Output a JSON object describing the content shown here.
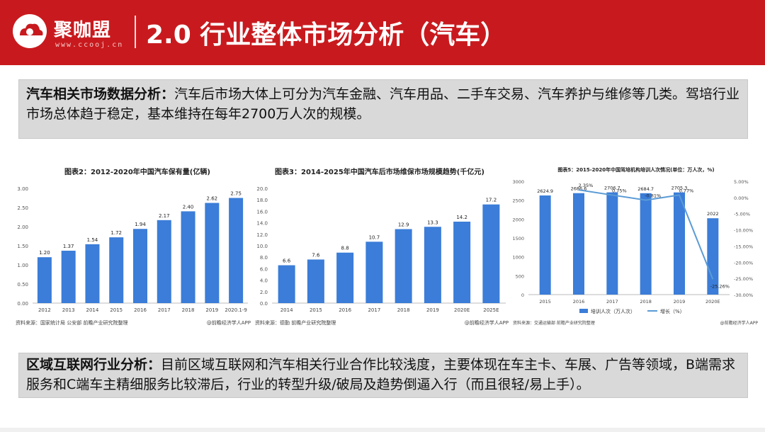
{
  "header": {
    "brand": "聚咖盟",
    "url": "www.ccooj.cn",
    "title": "2.0  行业整体市场分析（汽车）"
  },
  "section1": {
    "heading": "汽车相关市场数据分析：",
    "text": "汽车后市场大体上可分为汽车金融、汽车用品、二手车交易、汽车养护与维修等几类。驾培行业市场总体趋于稳定，基本维持在每年2700万人次的规模。"
  },
  "section2": {
    "heading": "区域互联网行业分析：",
    "text": "目前区域互联网和汽车相关行业合作比较浅度，主要体现在车主卡、车展、广告等领域，B端需求服务和C端车主精细服务比较滞后，行业的转型升级/破局及趋势倒逼入行（而且很轻/易上手）。"
  },
  "colors": {
    "header": "#c81a1e",
    "bar": "#3b7dd8",
    "line": "#5b9bd5"
  },
  "chart_data": [
    {
      "type": "bar",
      "title": "图表2：2012-2020年中国汽车保有量(亿辆)",
      "categories": [
        "2012",
        "2013",
        "2014",
        "2015",
        "2016",
        "2017",
        "2018",
        "2019",
        "2020.1-9"
      ],
      "values": [
        1.2,
        1.37,
        1.54,
        1.72,
        1.94,
        2.17,
        2.4,
        2.62,
        2.75
      ],
      "value_labels": [
        "1.20",
        "1.37",
        "1.54",
        "1.72",
        "1.94",
        "2.17",
        "2.40",
        "2.62",
        "2.75"
      ],
      "yticks": [
        "0.00",
        "0.50",
        "1.00",
        "1.50",
        "2.00",
        "2.50",
        "3.00"
      ],
      "ylim": [
        0,
        3
      ],
      "source": "资料来源：国家统计局 公安部 前瞻产业研究院整理",
      "credit": "@前瞻经济学人APP"
    },
    {
      "type": "bar",
      "title": "图表3：2014-2025年中国汽车后市场维保市场规模趋势(千亿元)",
      "categories": [
        "2014",
        "2015",
        "2016",
        "2017",
        "2018",
        "2019",
        "2020E",
        "2025E"
      ],
      "values": [
        6.6,
        7.6,
        8.8,
        10.7,
        12.9,
        13.3,
        14.2,
        17.2
      ],
      "value_labels": [
        "6.6",
        "7.6",
        "8.8",
        "10.7",
        "12.9",
        "13.3",
        "14.2",
        "17.2"
      ],
      "yticks": [
        "0.0",
        "2.0",
        "4.0",
        "6.0",
        "8.0",
        "10.0",
        "12.0",
        "14.0",
        "16.0",
        "18.0",
        "20.0"
      ],
      "ylim": [
        0,
        20
      ],
      "source": "资料来源：德勤 前瞻产业研究院整理",
      "credit": "@前瞻经济学人APP"
    },
    {
      "type": "bar+line",
      "title": "图表5：2015-2020年中国驾培机构培训人次情况(单位：万人次，%)",
      "categories": [
        "2015",
        "2016",
        "2017",
        "2018",
        "2019",
        "2020E"
      ],
      "series": [
        {
          "name": "培训人次（万人次）",
          "type": "bar",
          "values": [
            2624.9,
            2686.6,
            2706.7,
            2684.7,
            2705.3,
            2022
          ],
          "value_labels": [
            "2624.9",
            "2686.6",
            "2706.7",
            "2684.7",
            "2705.3",
            "2022"
          ]
        },
        {
          "name": "增长（%）",
          "type": "line",
          "values": [
            null,
            2.35,
            0.75,
            -0.81,
            0.77,
            -25.26
          ],
          "value_labels": [
            "",
            "2.35%",
            "0.75%",
            "-0.81%",
            "0.77%",
            "-25.26%"
          ]
        }
      ],
      "yticks_left": [
        "0",
        "500",
        "1000",
        "1500",
        "2000",
        "2500",
        "3000"
      ],
      "ylim_left": [
        0,
        3000
      ],
      "yticks_right": [
        "5.00%",
        "0.00%",
        "-5.00%",
        "-10.00%",
        "-15.00%",
        "-20.00%",
        "-25.00%",
        "-30.00%"
      ],
      "ylim_right": [
        -30,
        5
      ],
      "source": "资料来源：交通运输部 前瞻产业研究院整理",
      "credit": "@前瞻经济学人APP"
    }
  ]
}
